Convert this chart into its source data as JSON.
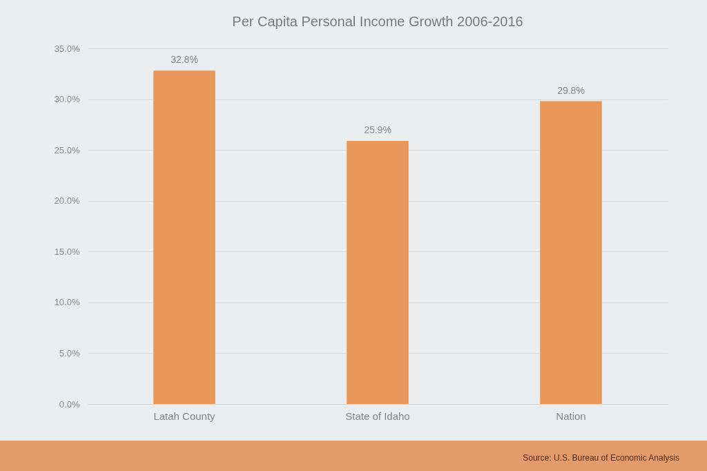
{
  "chart_data": {
    "type": "bar",
    "title": "Per Capita Personal Income Growth 2006-2016",
    "categories": [
      "Latah County",
      "State of Idaho",
      "Nation"
    ],
    "values": [
      32.8,
      25.9,
      29.8
    ],
    "value_labels": [
      "32.8%",
      "25.9%",
      "29.8%"
    ],
    "color": "#e9975a",
    "ylim": [
      0,
      35
    ],
    "yticks": [
      {
        "value": 0,
        "label": "0.0%"
      },
      {
        "value": 5,
        "label": "5.0%"
      },
      {
        "value": 10,
        "label": "10.0%"
      },
      {
        "value": 15,
        "label": "15.0%"
      },
      {
        "value": 20,
        "label": "20.0%"
      },
      {
        "value": 25,
        "label": "25.0%"
      },
      {
        "value": 30,
        "label": "30.0%"
      },
      {
        "value": 35,
        "label": "35.0%"
      }
    ],
    "grid": "y",
    "annotations": [
      "Source: U.S. Bureau of Economic Analysis"
    ]
  }
}
